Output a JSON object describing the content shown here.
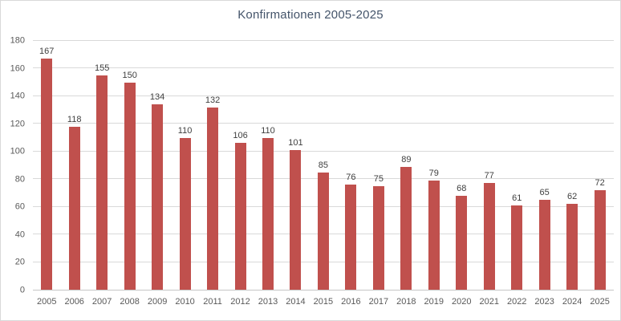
{
  "window": {
    "background": "#FFFFFF",
    "border_color": "#D9D9D9"
  },
  "chart_data": {
    "type": "bar",
    "title": "Konfirmationen 2005-2025",
    "categories": [
      "2005",
      "2006",
      "2007",
      "2008",
      "2009",
      "2010",
      "2011",
      "2012",
      "2013",
      "2014",
      "2015",
      "2016",
      "2017",
      "2018",
      "2019",
      "2020",
      "2021",
      "2022",
      "2023",
      "2024",
      "2025"
    ],
    "values": [
      167,
      118,
      155,
      150,
      134,
      110,
      132,
      106,
      110,
      101,
      85,
      76,
      75,
      89,
      79,
      68,
      77,
      61,
      65,
      62,
      72
    ],
    "xlabel": "",
    "ylabel": "",
    "ylim": [
      0,
      180
    ],
    "ytick_step": 20,
    "yticks": [
      0,
      20,
      40,
      60,
      80,
      100,
      120,
      140,
      160,
      180
    ],
    "grid": true,
    "legend": false,
    "data_labels": true,
    "colors": {
      "bar": "#C0504D",
      "title": "#44546A",
      "data_label": "#404040",
      "tick_label": "#595959",
      "gridline": "#D9D9D9",
      "axis_line": "#C6C6C6"
    }
  }
}
